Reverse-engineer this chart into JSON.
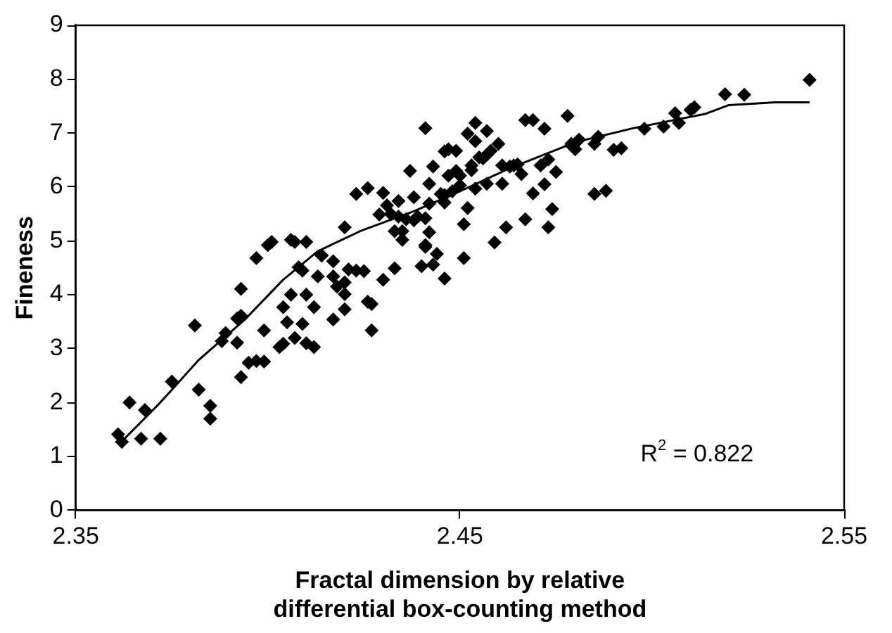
{
  "chart_data": {
    "type": "scatter",
    "xlabel": "Fractal dimension by relative differential box-counting method",
    "ylabel": "Fineness",
    "xlim": [
      2.35,
      2.55
    ],
    "xticks": [
      2.35,
      2.45,
      2.55
    ],
    "ylim": [
      0,
      9
    ],
    "yticks": [
      0,
      1,
      2,
      3,
      4,
      5,
      6,
      7,
      8,
      9
    ],
    "grid": false,
    "legend": false,
    "annotations": [
      "R$^{2}$ = 0.822"
    ],
    "series": [
      {
        "marker": "diamond",
        "color": "#000000",
        "x": [
          2.361,
          2.362,
          2.364,
          2.367,
          2.368,
          2.372,
          2.375,
          2.381,
          2.382,
          2.385,
          2.385,
          2.388,
          2.389,
          2.392,
          2.393,
          2.393,
          2.392,
          2.393,
          2.397,
          2.399,
          2.395,
          2.397,
          2.399,
          2.4,
          2.401,
          2.403,
          2.404,
          2.404,
          2.405,
          2.406,
          2.407,
          2.407,
          2.408,
          2.409,
          2.409,
          2.406,
          2.41,
          2.41,
          2.41,
          2.412,
          2.412,
          2.413,
          2.414,
          2.414,
          2.417,
          2.417,
          2.417,
          2.418,
          2.42,
          2.42,
          2.42,
          2.42,
          2.421,
          2.423,
          2.423,
          2.425,
          2.426,
          2.426,
          2.427,
          2.427,
          2.429,
          2.43,
          2.43,
          2.431,
          2.432,
          2.433,
          2.433,
          2.434,
          2.434,
          2.435,
          2.435,
          2.436,
          2.437,
          2.438,
          2.438,
          2.439,
          2.44,
          2.441,
          2.441,
          2.441,
          2.441,
          2.442,
          2.442,
          2.442,
          2.443,
          2.443,
          2.444,
          2.445,
          2.446,
          2.446,
          2.446,
          2.446,
          2.447,
          2.447,
          2.448,
          2.449,
          2.449,
          2.45,
          2.45,
          2.451,
          2.451,
          2.452,
          2.452,
          2.453,
          2.453,
          2.454,
          2.454,
          2.454,
          2.455,
          2.456,
          2.457,
          2.457,
          2.457,
          2.458,
          2.459,
          2.46,
          2.461,
          2.461,
          2.462,
          2.463,
          2.464,
          2.465,
          2.466,
          2.467,
          2.467,
          2.469,
          2.469,
          2.471,
          2.472,
          2.472,
          2.473,
          2.473,
          2.474,
          2.475,
          2.478,
          2.479,
          2.479,
          2.48,
          2.481,
          2.485,
          2.485,
          2.486,
          2.488,
          2.49,
          2.492,
          2.498,
          2.503,
          2.506,
          2.507,
          2.51,
          2.511,
          2.519,
          2.524,
          2.541
        ],
        "values": [
          1.41,
          1.27,
          2.0,
          1.33,
          1.86,
          1.33,
          2.39,
          3.43,
          2.24,
          1.94,
          1.7,
          3.14,
          3.29,
          3.11,
          2.47,
          3.61,
          3.56,
          4.11,
          4.68,
          3.34,
          2.74,
          2.77,
          2.76,
          4.92,
          4.98,
          3.03,
          3.09,
          3.77,
          3.49,
          5.02,
          4.98,
          3.2,
          4.51,
          4.45,
          3.46,
          4.0,
          4.98,
          3.1,
          4.0,
          3.03,
          3.77,
          4.34,
          4.73,
          4.73,
          4.62,
          3.54,
          4.34,
          4.15,
          4.23,
          5.25,
          4.01,
          3.73,
          4.47,
          4.45,
          5.87,
          4.44,
          5.98,
          3.87,
          3.34,
          3.83,
          5.49,
          4.28,
          5.89,
          5.66,
          5.5,
          5.18,
          4.49,
          5.74,
          5.45,
          5.02,
          5.18,
          5.4,
          6.3,
          5.81,
          5.38,
          5.45,
          4.53,
          4.89,
          5.42,
          4.92,
          7.09,
          5.69,
          5.16,
          6.06,
          6.38,
          4.56,
          4.76,
          5.87,
          5.85,
          6.66,
          4.3,
          5.71,
          6.7,
          6.21,
          5.92,
          6.3,
          6.67,
          6.03,
          6.21,
          4.68,
          5.31,
          6.99,
          5.61,
          6.4,
          6.31,
          7.19,
          6.85,
          5.97,
          6.55,
          6.53,
          6.6,
          7.04,
          6.06,
          6.67,
          4.97,
          6.8,
          6.4,
          6.06,
          5.25,
          6.38,
          6.4,
          6.42,
          6.24,
          5.4,
          7.24,
          7.24,
          5.88,
          6.4,
          6.05,
          7.08,
          6.51,
          5.25,
          5.59,
          6.28,
          7.32,
          6.8,
          6.77,
          6.7,
          6.88,
          5.87,
          6.8,
          6.93,
          5.93,
          6.69,
          6.72,
          7.08,
          7.12,
          7.37,
          7.19,
          7.43,
          7.48,
          7.72,
          7.71,
          7.99
        ]
      },
      {
        "type": "line",
        "marker": "none",
        "color": "#000000",
        "x": [
          2.362,
          2.372,
          2.382,
          2.394,
          2.404,
          2.413,
          2.424,
          2.438,
          2.45,
          2.463,
          2.48,
          2.495,
          2.514,
          2.52,
          2.532,
          2.541
        ],
        "values": [
          1.28,
          2.0,
          2.79,
          3.54,
          4.28,
          4.81,
          5.18,
          5.55,
          5.92,
          6.35,
          6.83,
          7.09,
          7.36,
          7.52,
          7.57,
          7.57
        ]
      }
    ]
  }
}
